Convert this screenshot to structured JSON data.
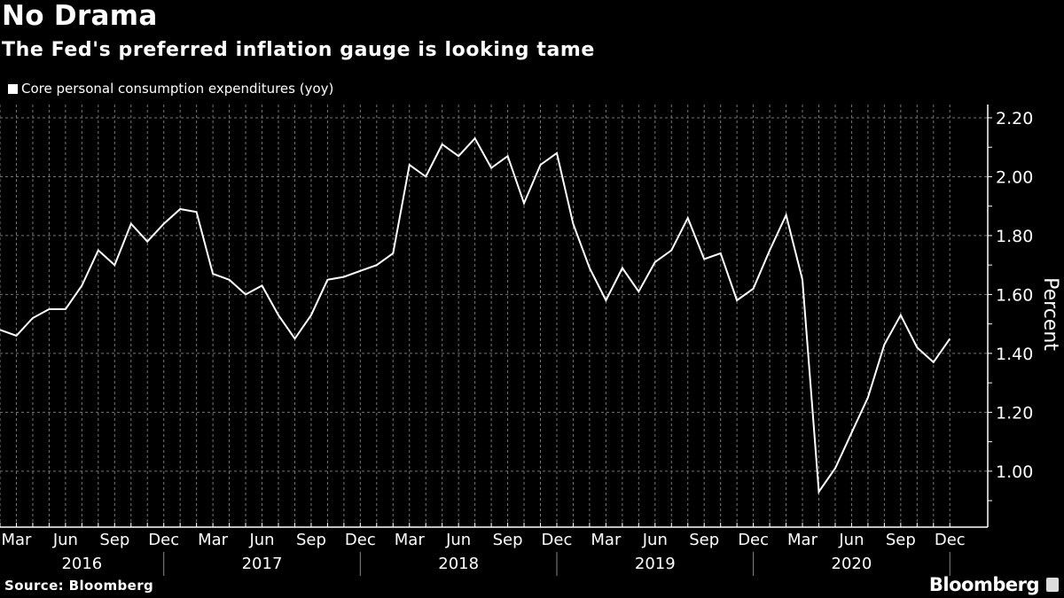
{
  "title": "No Drama",
  "subtitle": "The Fed's preferred inflation gauge is looking tame",
  "source": "Source: Bloomberg",
  "logo": "Bloomberg",
  "chart_data": {
    "type": "line",
    "title": "No Drama",
    "subtitle": "The Fed's preferred inflation gauge is looking tame",
    "xlabel": "",
    "ylabel": "Percent",
    "start_month": "2016-02",
    "series": [
      {
        "name": "Core personal consumption expenditures (yoy)",
        "color": "#ffffff",
        "values": [
          1.48,
          1.46,
          1.52,
          1.55,
          1.55,
          1.63,
          1.75,
          1.7,
          1.84,
          1.78,
          1.84,
          1.89,
          1.88,
          1.67,
          1.65,
          1.6,
          1.63,
          1.53,
          1.45,
          1.53,
          1.65,
          1.66,
          1.68,
          1.7,
          1.74,
          2.04,
          2.0,
          2.11,
          2.07,
          2.13,
          2.03,
          2.07,
          1.91,
          2.04,
          2.08,
          1.84,
          1.69,
          1.58,
          1.69,
          1.61,
          1.71,
          1.75,
          1.86,
          1.72,
          1.74,
          1.58,
          1.62,
          1.75,
          1.87,
          1.65,
          0.93,
          1.01,
          1.13,
          1.25,
          1.43,
          1.53,
          1.42,
          1.37,
          1.45
        ]
      }
    ],
    "ylim": [
      0.81,
      2.245
    ],
    "yticks": [
      "1.00",
      "1.20",
      "1.40",
      "1.60",
      "1.80",
      "2.00",
      "2.20"
    ],
    "month_ticks": [
      "Mar",
      "Jun",
      "Sep",
      "Dec"
    ],
    "years": [
      "2016",
      "2017",
      "2018",
      "2019",
      "2020"
    ],
    "grid": true,
    "legend_position": "top-left",
    "y_axis_side": "right"
  }
}
